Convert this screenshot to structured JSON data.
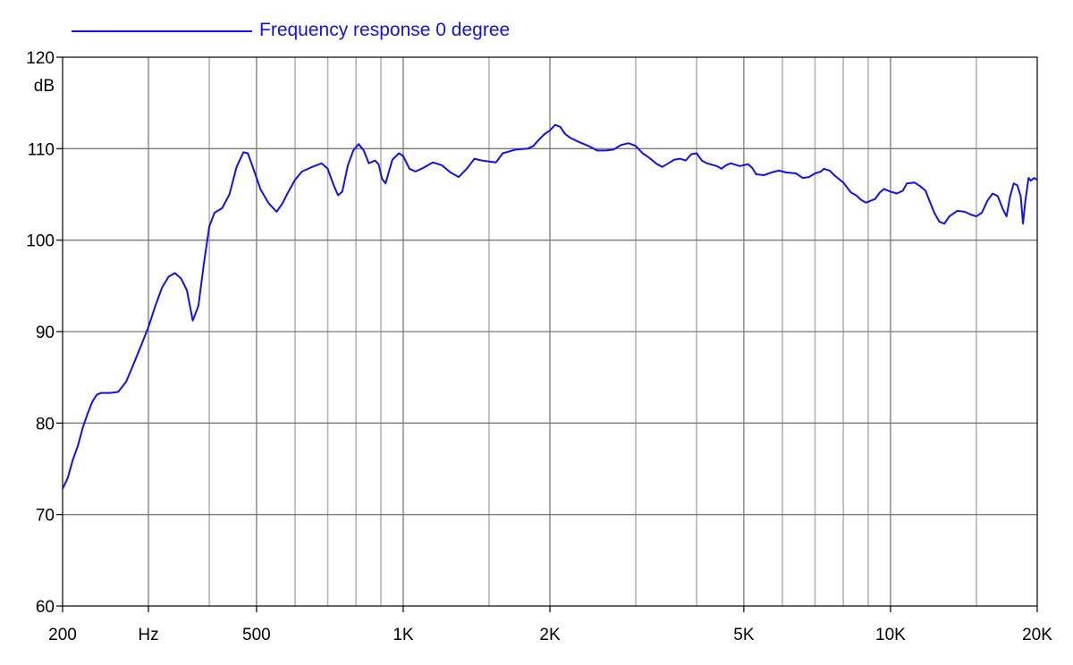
{
  "chart_data": {
    "type": "line",
    "legend": "top-left",
    "grid": true,
    "x_scale": "log",
    "x_tick_labels": [
      {
        "label": "200",
        "value": 200
      },
      {
        "label": "Hz",
        "value": 300
      },
      {
        "label": "500",
        "value": 500
      },
      {
        "label": "1K",
        "value": 1000
      },
      {
        "label": "2K",
        "value": 2000
      },
      {
        "label": "5K",
        "value": 5000
      },
      {
        "label": "10K",
        "value": 10000
      },
      {
        "label": "20K",
        "value": 20000
      }
    ],
    "x_gridlines": [
      300,
      400,
      500,
      600,
      700,
      800,
      900,
      1000,
      1500,
      2000,
      3000,
      4000,
      5000,
      6000,
      7000,
      8000,
      9000,
      10000,
      15000
    ],
    "xlim": [
      200,
      20000
    ],
    "ylim": [
      60,
      120
    ],
    "y_ticks": [
      60,
      70,
      80,
      90,
      100,
      110,
      120
    ],
    "y_unit": "dB",
    "colors": {
      "series": "#1010f0",
      "grid_major": "#7a7a7a",
      "grid_minor": "#b4b4b4",
      "axis": "#000000"
    },
    "series": [
      {
        "name": "Frequency response 0 degree",
        "points": [
          [
            200,
            72.8
          ],
          [
            205,
            74
          ],
          [
            210,
            76
          ],
          [
            215,
            77.5
          ],
          [
            220,
            79.5
          ],
          [
            225,
            81
          ],
          [
            230,
            82.3
          ],
          [
            235,
            83.1
          ],
          [
            240,
            83.3
          ],
          [
            250,
            83.3
          ],
          [
            260,
            83.4
          ],
          [
            270,
            84.5
          ],
          [
            280,
            86.5
          ],
          [
            290,
            88.5
          ],
          [
            300,
            90.5
          ],
          [
            310,
            92.8
          ],
          [
            320,
            94.8
          ],
          [
            330,
            96
          ],
          [
            340,
            96.4
          ],
          [
            350,
            95.8
          ],
          [
            360,
            94.5
          ],
          [
            370,
            91.2
          ],
          [
            380,
            92.8
          ],
          [
            390,
            97.5
          ],
          [
            400,
            101.5
          ],
          [
            410,
            103
          ],
          [
            425,
            103.5
          ],
          [
            440,
            105
          ],
          [
            455,
            108
          ],
          [
            470,
            109.6
          ],
          [
            480,
            109.5
          ],
          [
            495,
            107.5
          ],
          [
            510,
            105.5
          ],
          [
            530,
            104
          ],
          [
            550,
            103.1
          ],
          [
            565,
            104
          ],
          [
            580,
            105.2
          ],
          [
            600,
            106.6
          ],
          [
            620,
            107.5
          ],
          [
            650,
            108
          ],
          [
            680,
            108.4
          ],
          [
            700,
            107.8
          ],
          [
            720,
            106
          ],
          [
            735,
            104.9
          ],
          [
            750,
            105.3
          ],
          [
            770,
            108.2
          ],
          [
            790,
            109.8
          ],
          [
            810,
            110.5
          ],
          [
            830,
            109.8
          ],
          [
            850,
            108.4
          ],
          [
            875,
            108.7
          ],
          [
            890,
            108.3
          ],
          [
            905,
            106.7
          ],
          [
            920,
            106.2
          ],
          [
            950,
            108.8
          ],
          [
            980,
            109.5
          ],
          [
            1000,
            109.2
          ],
          [
            1030,
            107.8
          ],
          [
            1060,
            107.5
          ],
          [
            1100,
            107.9
          ],
          [
            1150,
            108.5
          ],
          [
            1200,
            108.2
          ],
          [
            1250,
            107.4
          ],
          [
            1300,
            106.9
          ],
          [
            1350,
            107.8
          ],
          [
            1400,
            108.9
          ],
          [
            1450,
            108.7
          ],
          [
            1550,
            108.5
          ],
          [
            1600,
            109.5
          ],
          [
            1700,
            109.9
          ],
          [
            1800,
            110
          ],
          [
            1850,
            110.3
          ],
          [
            1900,
            111
          ],
          [
            1950,
            111.6
          ],
          [
            2000,
            112
          ],
          [
            2050,
            112.6
          ],
          [
            2100,
            112.4
          ],
          [
            2150,
            111.6
          ],
          [
            2200,
            111.2
          ],
          [
            2300,
            110.7
          ],
          [
            2400,
            110.3
          ],
          [
            2500,
            109.8
          ],
          [
            2600,
            109.8
          ],
          [
            2700,
            109.9
          ],
          [
            2800,
            110.4
          ],
          [
            2900,
            110.6
          ],
          [
            3000,
            110.3
          ],
          [
            3100,
            109.5
          ],
          [
            3200,
            109
          ],
          [
            3300,
            108.4
          ],
          [
            3400,
            108
          ],
          [
            3500,
            108.4
          ],
          [
            3600,
            108.8
          ],
          [
            3700,
            108.9
          ],
          [
            3800,
            108.7
          ],
          [
            3900,
            109.4
          ],
          [
            4000,
            109.5
          ],
          [
            4100,
            108.7
          ],
          [
            4200,
            108.4
          ],
          [
            4400,
            108.1
          ],
          [
            4500,
            107.8
          ],
          [
            4600,
            108.2
          ],
          [
            4700,
            108.4
          ],
          [
            4900,
            108.1
          ],
          [
            5100,
            108.3
          ],
          [
            5200,
            107.9
          ],
          [
            5300,
            107.2
          ],
          [
            5500,
            107.1
          ],
          [
            5700,
            107.4
          ],
          [
            5900,
            107.6
          ],
          [
            6100,
            107.4
          ],
          [
            6400,
            107.3
          ],
          [
            6600,
            106.8
          ],
          [
            6800,
            106.9
          ],
          [
            7000,
            107.3
          ],
          [
            7200,
            107.5
          ],
          [
            7300,
            107.8
          ],
          [
            7500,
            107.6
          ],
          [
            7700,
            107
          ],
          [
            8000,
            106.3
          ],
          [
            8300,
            105.2
          ],
          [
            8500,
            104.9
          ],
          [
            8700,
            104.4
          ],
          [
            8900,
            104.1
          ],
          [
            9100,
            104.3
          ],
          [
            9300,
            104.5
          ],
          [
            9500,
            105.2
          ],
          [
            9700,
            105.6
          ],
          [
            10000,
            105.3
          ],
          [
            10300,
            105.1
          ],
          [
            10600,
            105.4
          ],
          [
            10800,
            106.2
          ],
          [
            11200,
            106.3
          ],
          [
            11500,
            105.9
          ],
          [
            11800,
            105.4
          ],
          [
            12000,
            104.4
          ],
          [
            12300,
            103
          ],
          [
            12600,
            102
          ],
          [
            12900,
            101.8
          ],
          [
            13200,
            102.6
          ],
          [
            13700,
            103.2
          ],
          [
            14200,
            103.1
          ],
          [
            14600,
            102.8
          ],
          [
            15000,
            102.6
          ],
          [
            15400,
            103
          ],
          [
            15800,
            104.3
          ],
          [
            16200,
            105.1
          ],
          [
            16600,
            104.8
          ],
          [
            17000,
            103.4
          ],
          [
            17300,
            102.6
          ],
          [
            17600,
            104.8
          ],
          [
            17900,
            106.2
          ],
          [
            18200,
            106
          ],
          [
            18500,
            104.8
          ],
          [
            18700,
            101.8
          ],
          [
            18900,
            104.2
          ],
          [
            19200,
            106.8
          ],
          [
            19400,
            106.5
          ],
          [
            19700,
            106.8
          ],
          [
            20000,
            106.6
          ]
        ]
      }
    ]
  }
}
